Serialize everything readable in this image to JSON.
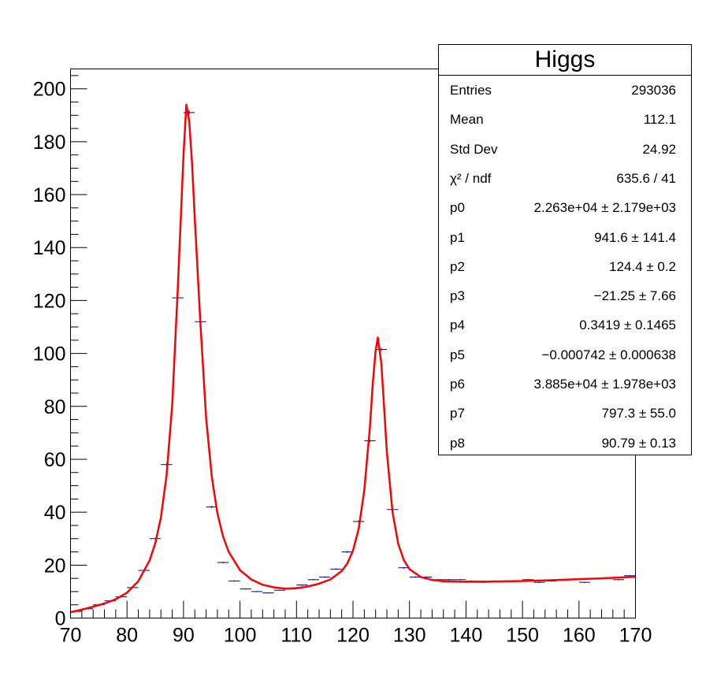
{
  "chart_data": {
    "type": "scatter",
    "title": "Higgs",
    "xlabel": "",
    "ylabel": "",
    "xlim": [
      70,
      170
    ],
    "ylim": [
      0,
      207.5
    ],
    "x_ticks": [
      70,
      80,
      90,
      100,
      110,
      120,
      130,
      140,
      150,
      160,
      170
    ],
    "y_ticks": [
      0,
      20,
      40,
      60,
      80,
      100,
      120,
      140,
      160,
      180,
      200
    ],
    "colors": {
      "points": "#000099",
      "fit": "#ff0000"
    },
    "series": [
      {
        "name": "data",
        "bin_width": 2,
        "x": [
          71,
          73,
          75,
          77,
          79,
          81,
          83,
          85,
          87,
          89,
          91,
          93,
          95,
          97,
          99,
          101,
          103,
          105,
          107,
          109,
          111,
          113,
          115,
          117,
          119,
          121,
          123,
          125,
          127,
          129,
          131,
          133,
          135,
          137,
          139,
          141,
          143,
          145,
          147,
          149,
          151,
          153,
          155,
          157,
          159,
          161,
          163,
          165,
          167,
          169
        ],
        "y": [
          2.5,
          3.5,
          5,
          6.5,
          8,
          11.5,
          18,
          30,
          58,
          121,
          191,
          112,
          42,
          21,
          14,
          11,
          10,
          9.5,
          10.5,
          11,
          12.5,
          14.5,
          15.5,
          18.5,
          25,
          36.5,
          67,
          101.5,
          41,
          19,
          15.5,
          15.5,
          14.5,
          14.5,
          14.5,
          14,
          13.5,
          14,
          14,
          14,
          14.5,
          13.5,
          14,
          14.5,
          14.5,
          13.5,
          15,
          15,
          14.5,
          16
        ]
      },
      {
        "name": "fit",
        "x": [
          70,
          72,
          74,
          76,
          78,
          80,
          82,
          84,
          85,
          86,
          87,
          88,
          89,
          90,
          90.5,
          91,
          91.5,
          92,
          93,
          94,
          95,
          96,
          97,
          98,
          100,
          102,
          104,
          106,
          108,
          110,
          112,
          114,
          116,
          118,
          119,
          120,
          121,
          122,
          123,
          123.5,
          124,
          124.4,
          125,
          125.5,
          126,
          127,
          128,
          129,
          130,
          132,
          134,
          136,
          140,
          145,
          150,
          155,
          160,
          165,
          170
        ],
        "y": [
          2.2,
          3.2,
          4.3,
          5.5,
          7.1,
          9.6,
          13.9,
          21.8,
          28.3,
          38,
          53.9,
          80.7,
          125,
          175,
          194,
          188,
          172,
          151,
          111,
          75.6,
          53.4,
          39.6,
          30.8,
          25,
          18.1,
          14.6,
          12.6,
          11.6,
          11.1,
          11.3,
          11.9,
          13,
          14.6,
          17.8,
          20.6,
          25.5,
          33.7,
          48.2,
          72.3,
          88.7,
          101,
          106,
          96.5,
          80,
          62.7,
          40,
          28,
          21.9,
          18.5,
          15.5,
          14.4,
          13.9,
          13.7,
          13.8,
          14,
          14.3,
          14.7,
          15.1,
          15.6
        ]
      }
    ],
    "stats": {
      "title": "Higgs",
      "rows": [
        {
          "key": "Entries",
          "value": "293036"
        },
        {
          "key": "Mean",
          "value": "112.1"
        },
        {
          "key": "Std Dev",
          "value": "24.92"
        },
        {
          "key": "χ² / ndf",
          "value": "635.6 / 41"
        },
        {
          "key": "p0",
          "value": "2.263e+04 ± 2.179e+03"
        },
        {
          "key": "p1",
          "value": "941.6 ± 141.4"
        },
        {
          "key": "p2",
          "value": "124.4 ± 0.2"
        },
        {
          "key": "p3",
          "value": "−21.25 ± 7.66"
        },
        {
          "key": "p4",
          "value": "0.3419 ± 0.1465"
        },
        {
          "key": "p5",
          "value": "−0.000742 ± 0.000638"
        },
        {
          "key": "p6",
          "value": "3.885e+04 ± 1.978e+03"
        },
        {
          "key": "p7",
          "value": "797.3 ± 55.0"
        },
        {
          "key": "p8",
          "value": "90.79 ± 0.13"
        }
      ]
    }
  }
}
